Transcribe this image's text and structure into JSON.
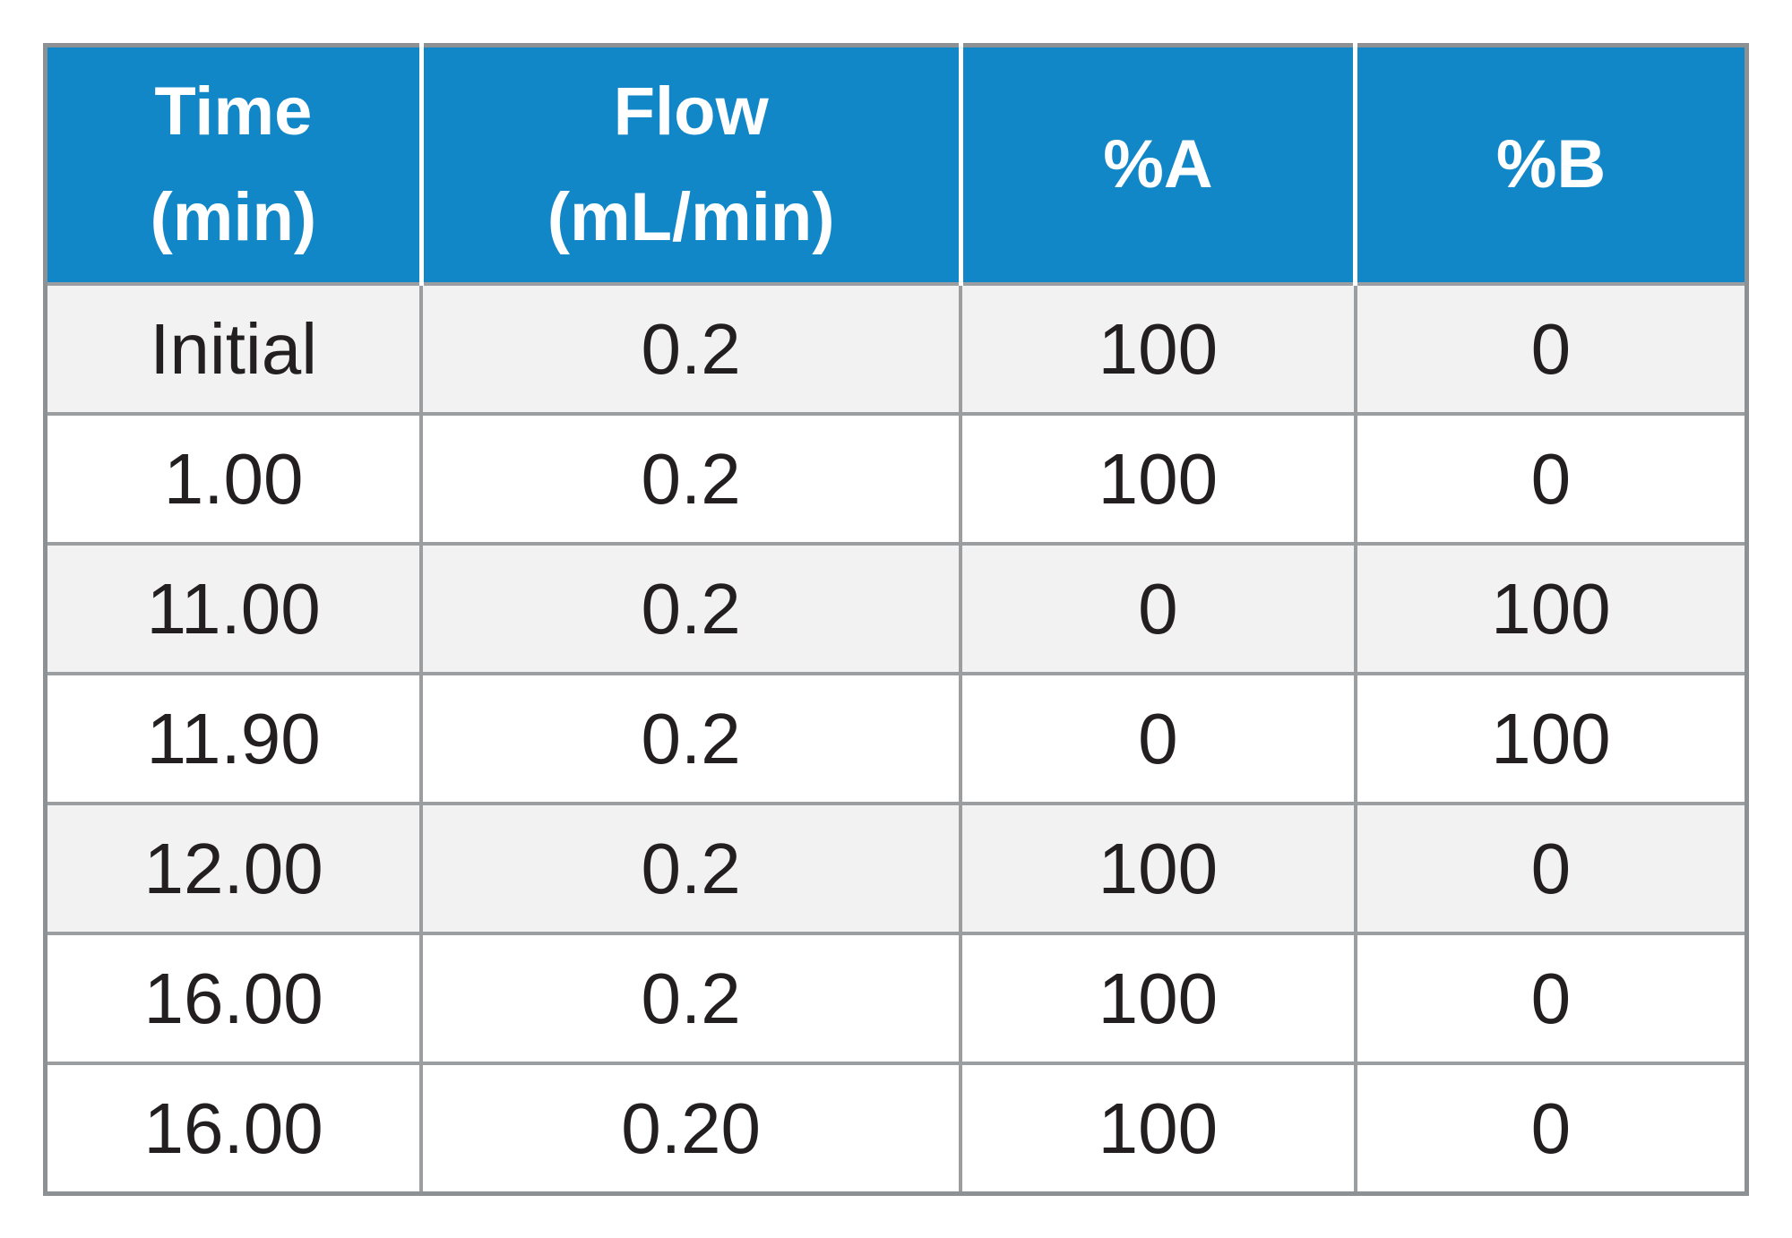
{
  "chart_data": {
    "type": "table",
    "columns": [
      "Time\n(min)",
      "Flow\n(mL/min)",
      "%A",
      "%B"
    ],
    "rows": [
      [
        "Initial",
        "0.2",
        "100",
        "0"
      ],
      [
        "1.00",
        "0.2",
        "100",
        "0"
      ],
      [
        "11.00",
        "0.2",
        "0",
        "100"
      ],
      [
        "11.90",
        "0.2",
        "0",
        "100"
      ],
      [
        "12.00",
        "0.2",
        "100",
        "0"
      ],
      [
        "16.00",
        "0.2",
        "100",
        "0"
      ],
      [
        "16.00",
        "0.20",
        "100",
        "0"
      ]
    ],
    "shaded_row_indexes": [
      0,
      2,
      4
    ],
    "layout_hints": {
      "header_position": "top",
      "grid": "on",
      "value_alignment": "center"
    }
  },
  "colors": {
    "page_bg": "#ffffff",
    "header_bg": "#1287c8",
    "header_text": "#ffffff",
    "header_separator": "#ffffff",
    "row_bg": "#ffffff",
    "shaded_row_bg": "#f2f2f3",
    "border": "#9b9ea0",
    "outer_border": "#8d9194",
    "text": "#231f20"
  }
}
